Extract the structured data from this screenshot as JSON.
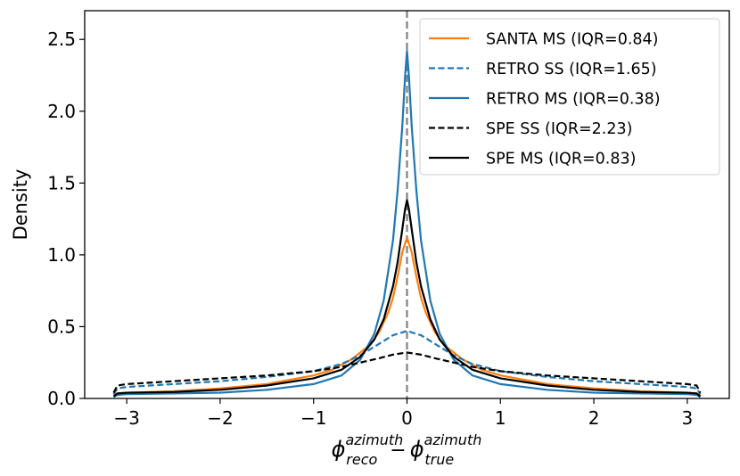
{
  "chart_data": {
    "type": "line",
    "xlabel": {
      "phi": "ϕ",
      "sub1": "reco",
      "sup1": "azimuth",
      "minus": "−",
      "sub2": "true",
      "sup2": "azimuth"
    },
    "ylabel": "Density",
    "xlim": [
      -3.45,
      3.45
    ],
    "ylim": [
      0,
      2.7
    ],
    "x_ticks": [
      -3,
      -2,
      -1,
      0,
      1,
      2,
      3
    ],
    "x_tick_labels": [
      "−3",
      "−2",
      "−1",
      "0",
      "1",
      "2",
      "3"
    ],
    "y_ticks": [
      0,
      0.5,
      1,
      1.5,
      2,
      2.5
    ],
    "y_tick_labels": [
      "0.0",
      "0.5",
      "1.0",
      "1.5",
      "2.0",
      "2.5"
    ],
    "grid": false,
    "legend_position": "top-right",
    "reference_line": {
      "x": 0,
      "color": "#808080",
      "style": "dashed"
    },
    "series": [
      {
        "name": "SANTA MS (IQR=0.84)",
        "color": "#ff7f0e",
        "style": "solid",
        "x": [
          -3.14,
          -3.1,
          -3.0,
          -2.5,
          -2.0,
          -1.5,
          -1.0,
          -0.8,
          -0.6,
          -0.4,
          -0.3,
          -0.2,
          -0.15,
          -0.1,
          -0.05,
          0,
          0.05,
          0.1,
          0.15,
          0.2,
          0.3,
          0.4,
          0.6,
          0.8,
          1.0,
          1.5,
          2.0,
          2.5,
          3.0,
          3.1,
          3.14
        ],
        "y": [
          0.02,
          0.035,
          0.04,
          0.05,
          0.07,
          0.1,
          0.16,
          0.2,
          0.27,
          0.37,
          0.46,
          0.6,
          0.7,
          0.85,
          1.02,
          1.12,
          1.02,
          0.85,
          0.7,
          0.6,
          0.46,
          0.37,
          0.27,
          0.2,
          0.16,
          0.1,
          0.07,
          0.05,
          0.04,
          0.035,
          0.02
        ]
      },
      {
        "name": "RETRO SS (IQR=1.65)",
        "color": "#1f77b4",
        "style": "dashed",
        "x": [
          -3.14,
          -3.1,
          -3.0,
          -2.5,
          -2.0,
          -1.5,
          -1.0,
          -0.7,
          -0.5,
          -0.3,
          -0.15,
          0,
          0.15,
          0.3,
          0.5,
          0.7,
          1.0,
          1.5,
          2.0,
          2.5,
          3.0,
          3.1,
          3.14
        ],
        "y": [
          0.03,
          0.07,
          0.08,
          0.1,
          0.12,
          0.15,
          0.19,
          0.24,
          0.3,
          0.38,
          0.44,
          0.47,
          0.44,
          0.38,
          0.3,
          0.24,
          0.19,
          0.15,
          0.12,
          0.1,
          0.08,
          0.07,
          0.03
        ]
      },
      {
        "name": "RETRO MS (IQR=0.38)",
        "color": "#1f77b4",
        "style": "solid",
        "x": [
          -3.14,
          -3.1,
          -3.0,
          -2.5,
          -2.0,
          -1.5,
          -1.0,
          -0.7,
          -0.5,
          -0.35,
          -0.25,
          -0.15,
          -0.1,
          -0.05,
          -0.02,
          0,
          0.02,
          0.05,
          0.1,
          0.15,
          0.25,
          0.35,
          0.5,
          0.7,
          1.0,
          1.5,
          2.0,
          2.5,
          3.0,
          3.1,
          3.14
        ],
        "y": [
          0.01,
          0.025,
          0.03,
          0.035,
          0.04,
          0.06,
          0.1,
          0.16,
          0.27,
          0.45,
          0.68,
          1.1,
          1.45,
          1.9,
          2.25,
          2.42,
          2.25,
          1.9,
          1.45,
          1.1,
          0.68,
          0.45,
          0.27,
          0.16,
          0.1,
          0.06,
          0.04,
          0.035,
          0.03,
          0.025,
          0.01
        ]
      },
      {
        "name": "SPE SS (IQR=2.23)",
        "color": "#000000",
        "style": "dashed",
        "x": [
          -3.14,
          -3.1,
          -3.0,
          -2.5,
          -2.0,
          -1.5,
          -1.0,
          -0.7,
          -0.5,
          -0.3,
          -0.15,
          0,
          0.15,
          0.3,
          0.5,
          0.7,
          1.0,
          1.5,
          2.0,
          2.5,
          3.0,
          3.1,
          3.14
        ],
        "y": [
          0.04,
          0.09,
          0.1,
          0.12,
          0.14,
          0.16,
          0.19,
          0.22,
          0.25,
          0.28,
          0.305,
          0.32,
          0.305,
          0.28,
          0.25,
          0.22,
          0.19,
          0.16,
          0.14,
          0.12,
          0.1,
          0.09,
          0.04
        ]
      },
      {
        "name": "SPE MS (IQR=0.83)",
        "color": "#000000",
        "style": "solid",
        "x": [
          -3.14,
          -3.1,
          -3.0,
          -2.5,
          -2.0,
          -1.5,
          -1.0,
          -0.7,
          -0.5,
          -0.35,
          -0.25,
          -0.15,
          -0.1,
          -0.05,
          -0.02,
          0,
          0.02,
          0.05,
          0.1,
          0.15,
          0.25,
          0.35,
          0.5,
          0.7,
          1.0,
          1.5,
          2.0,
          2.5,
          3.0,
          3.1,
          3.14
        ],
        "y": [
          0.015,
          0.035,
          0.04,
          0.045,
          0.06,
          0.09,
          0.14,
          0.2,
          0.29,
          0.41,
          0.55,
          0.78,
          0.95,
          1.18,
          1.32,
          1.38,
          1.32,
          1.18,
          0.95,
          0.78,
          0.55,
          0.41,
          0.29,
          0.2,
          0.14,
          0.09,
          0.06,
          0.045,
          0.04,
          0.035,
          0.015
        ]
      }
    ]
  }
}
